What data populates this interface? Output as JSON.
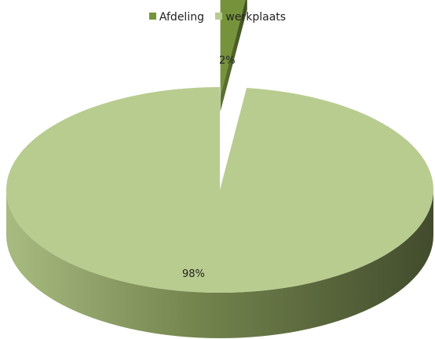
{
  "chart_data": {
    "type": "pie",
    "title": "",
    "style": "3d-exploded",
    "legend_position": "top",
    "categories": [
      "Afdeling",
      "werkplaats"
    ],
    "values": [
      2,
      98
    ],
    "labels": [
      "2%",
      "98%"
    ],
    "colors": [
      "#76933c",
      "#b8cc8f"
    ]
  }
}
